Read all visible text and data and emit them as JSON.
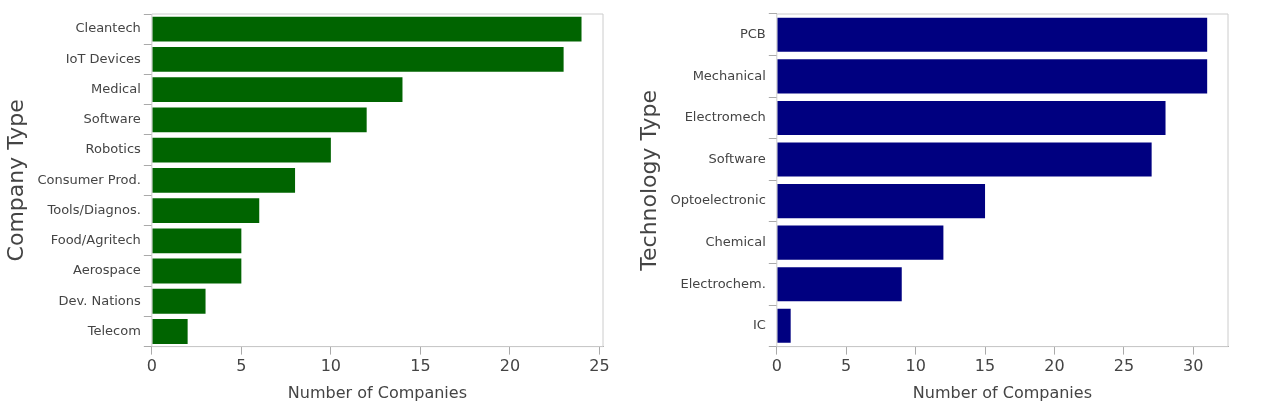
{
  "chart_data": [
    {
      "type": "bar",
      "orientation": "horizontal",
      "categories": [
        "Cleantech",
        "IoT Devices",
        "Medical",
        "Software",
        "Robotics",
        "Consumer Prod.",
        "Tools/Diagnos.",
        "Food/Agritech",
        "Aerospace",
        "Dev. Nations",
        "Telecom"
      ],
      "values": [
        24,
        23,
        14,
        12,
        10,
        8,
        6,
        5,
        5,
        3,
        2
      ],
      "color": "#006400",
      "xlabel": "Number of Companies",
      "ylabel": "Company Type",
      "xlim": [
        0,
        25.2
      ],
      "xticks": [
        0,
        5,
        10,
        15,
        20,
        25
      ]
    },
    {
      "type": "bar",
      "orientation": "horizontal",
      "categories": [
        "PCB",
        "Mechanical",
        "Electromech",
        "Software",
        "Optoelectronic",
        "Chemical",
        "Electrochem.",
        "IC"
      ],
      "values": [
        31,
        31,
        28,
        27,
        15,
        12,
        9,
        1
      ],
      "color": "#000080",
      "xlabel": "Number of Companies",
      "ylabel": "Technology Type",
      "xlim": [
        0,
        32.5
      ],
      "xticks": [
        0,
        5,
        10,
        15,
        20,
        25,
        30
      ]
    }
  ]
}
